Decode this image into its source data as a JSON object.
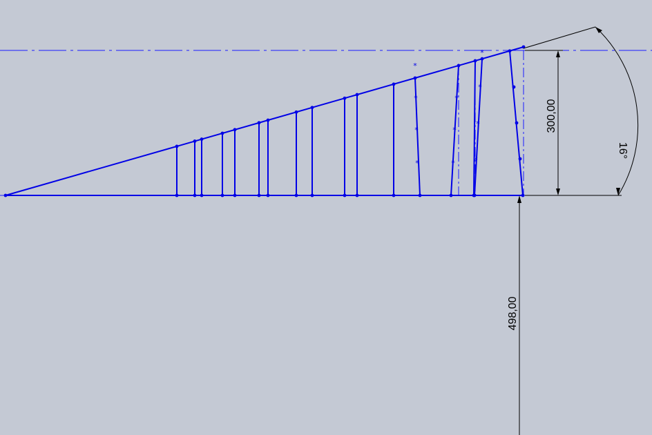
{
  "colors": {
    "background": "#c4c9d4",
    "sketch": "#0000e6",
    "centerline": "#1a1aff",
    "dimension": "#000000"
  },
  "dimensions": {
    "height_label": "300,00",
    "angle_label": "16°",
    "offset_label": "498,00"
  },
  "icons": {
    "endpoint": "sketch-point-icon",
    "midpoint": "sketch-asterisk-icon"
  }
}
